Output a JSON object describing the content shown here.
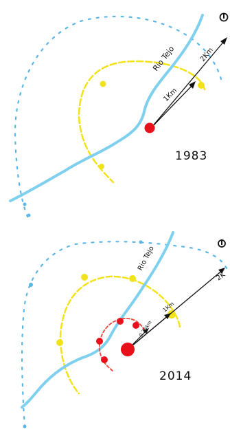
{
  "panels": [
    {
      "year": "1983",
      "river_label": "Rio Tejo",
      "distance_labels": {
        "inner": "1Km",
        "outer": "2Km"
      }
    },
    {
      "year": "2014",
      "river_label": "Rio Tejo",
      "distance_labels": {
        "small": "0,25km",
        "inner": "1Km",
        "outer": "2K"
      }
    }
  ],
  "colors": {
    "river": "#7fd0ee",
    "outer_ring": "#5ab6e6",
    "middle_ring": "#f2e21a",
    "inner_ring": "#e8463a",
    "center": "#e8101a",
    "ink": "#111111"
  },
  "icons": [
    "north-arrow-icon"
  ]
}
